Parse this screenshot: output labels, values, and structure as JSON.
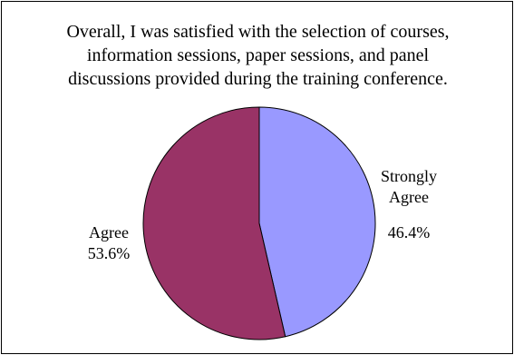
{
  "chart_data": {
    "type": "pie",
    "title": "Overall, I was satisfied with the selection of courses, information sessions, paper sessions, and panel discussions provided during the training conference.",
    "title_lines": [
      "Overall, I was satisfied with the selection of courses,",
      "information sessions, paper sessions, and panel",
      "discussions provided during the training conference."
    ],
    "slices": [
      {
        "label_lines": [
          "Strongly",
          "Agree"
        ],
        "label": "Strongly Agree",
        "value": 46.4,
        "value_label": "46.4%",
        "color": "#9999ff"
      },
      {
        "label_lines": [
          "Agree"
        ],
        "label": "Agree",
        "value": 53.6,
        "value_label": "53.6%",
        "color": "#993366"
      }
    ],
    "start_angle": "12 o'clock",
    "direction": "clockwise",
    "legend": "none",
    "border_color": "#000000"
  }
}
